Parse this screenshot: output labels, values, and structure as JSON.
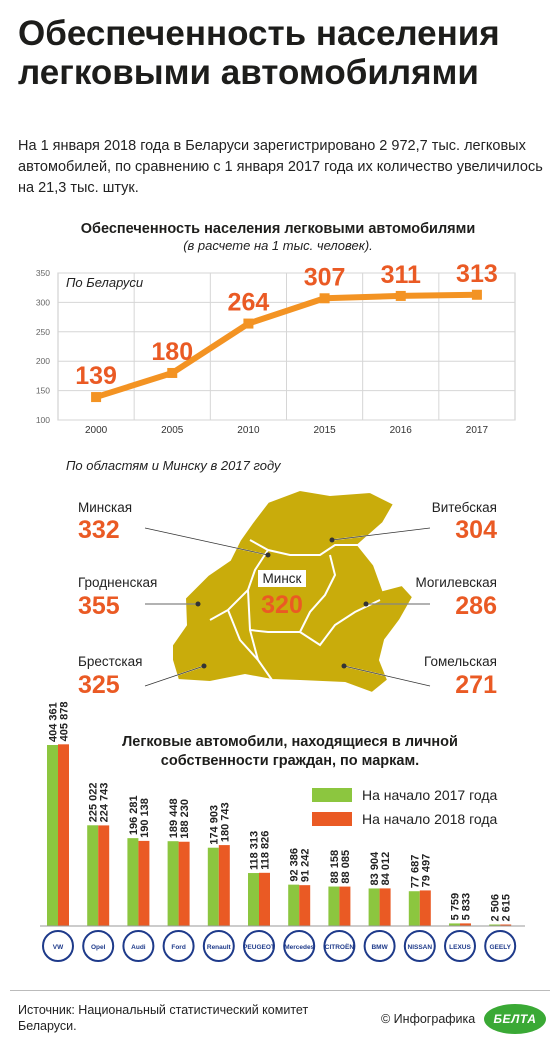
{
  "header": {
    "title": "Обеспеченность населения легковыми автомобилями",
    "lead": "На 1 января 2018 года в Беларуси зарегистрировано 2 972,7 тыс. легковых автомобилей, по сравнению с 1 января 2017 года их количество увеличилось на 21,3 тыс. штук."
  },
  "colors": {
    "orange": "#f39323",
    "redorange": "#ea5a24",
    "green": "#8cc63f",
    "map": "#c9ac0b"
  },
  "chart_data": [
    {
      "type": "line",
      "title": "Обеспеченность населения легковыми автомобилями",
      "subtitle": "(в расчете на 1 тыс. человек).",
      "series_label": "По Беларуси",
      "x": [
        "2000",
        "2005",
        "2010",
        "2015",
        "2016",
        "2017"
      ],
      "values": [
        139,
        180,
        264,
        307,
        311,
        313
      ],
      "ylim": [
        100,
        350
      ],
      "yticks": [
        100,
        150,
        200,
        250,
        300,
        350
      ],
      "grid": true
    },
    {
      "type": "table",
      "title": "По областям и Минску в 2017 году",
      "regions": [
        {
          "name": "Минская",
          "value": 332
        },
        {
          "name": "Витебская",
          "value": 304
        },
        {
          "name": "Гродненская",
          "value": 355
        },
        {
          "name": "Минск",
          "value": 320
        },
        {
          "name": "Могилевская",
          "value": 286
        },
        {
          "name": "Брестская",
          "value": 325
        },
        {
          "name": "Гомельская",
          "value": 271
        }
      ]
    },
    {
      "type": "bar",
      "title": "Легковые автомобили, находящиеся в личной собственности граждан, по маркам.",
      "categories": [
        "Volkswagen",
        "Opel",
        "Audi",
        "Ford",
        "Renault",
        "Peugeot",
        "Mercedes-Benz",
        "Citroen",
        "BMW",
        "Nissan",
        "Lexus",
        "Geely"
      ],
      "series": [
        {
          "name": "На начало 2017 года",
          "values": [
            404361,
            225022,
            196281,
            189448,
            174903,
            118313,
            92386,
            88158,
            83904,
            77687,
            5759,
            2506
          ],
          "labels": [
            "404 361",
            "225 022",
            "196 281",
            "189 448",
            "174 903",
            "118 313",
            "92 386",
            "88 158",
            "83 904",
            "77 687",
            "5 759",
            "2 506"
          ]
        },
        {
          "name": "На начало 2018 года",
          "values": [
            405878,
            224743,
            190138,
            188230,
            180743,
            118826,
            91242,
            88085,
            84012,
            79497,
            5833,
            2615
          ],
          "labels": [
            "405 878",
            "224 743",
            "190 138",
            "188 230",
            "180 743",
            "118 826",
            "91 242",
            "88 085",
            "84 012",
            "79 497",
            "5 833",
            "2 615"
          ]
        }
      ],
      "brand_badges": [
        "VW",
        "Opel",
        "Audi",
        "Ford",
        "Renault",
        "PEUGEOT",
        "Mercedes",
        "CITROËN",
        "BMW",
        "NISSAN",
        "LEXUS",
        "GEELY"
      ],
      "ylim": [
        0,
        420000
      ]
    }
  ],
  "footer": {
    "source": "Источник: Национальный статистический комитет Беларуси.",
    "copyright": "© Инфографика",
    "logo": "БЕЛТА"
  }
}
